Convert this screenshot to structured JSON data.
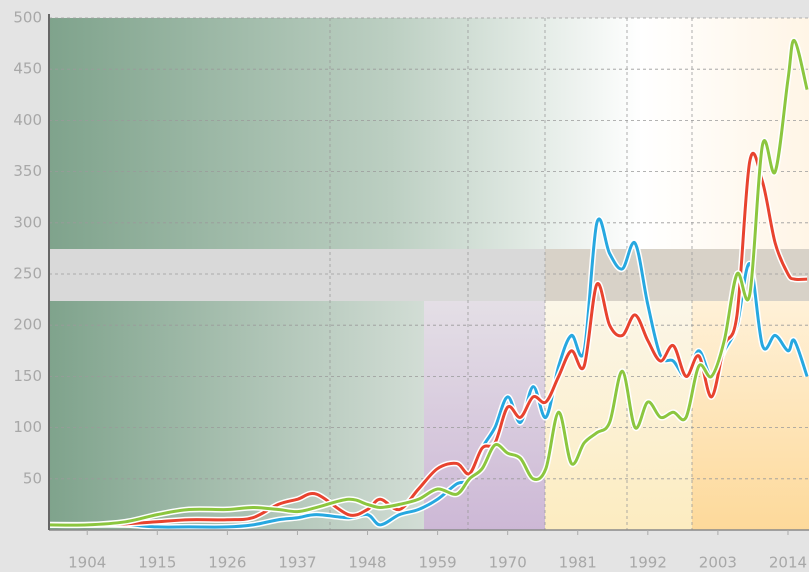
{
  "chart_data": {
    "type": "line",
    "x": [
      1898,
      1904,
      1910,
      1915,
      1920,
      1926,
      1930,
      1934,
      1937,
      1940,
      1945,
      1948,
      1950,
      1953,
      1956,
      1959,
      1962,
      1964,
      1966,
      1968,
      1970,
      1972,
      1974,
      1976,
      1978,
      1980,
      1982,
      1984,
      1986,
      1988,
      1990,
      1992,
      1994,
      1996,
      1998,
      2000,
      2002,
      2004,
      2006,
      2008,
      2010,
      2012,
      2014,
      2015,
      2017
    ],
    "series": [
      {
        "color": "#27a8e0",
        "values": [
          5,
          5,
          5,
          3,
          3,
          3,
          5,
          10,
          12,
          15,
          12,
          15,
          5,
          15,
          20,
          30,
          45,
          50,
          80,
          100,
          130,
          105,
          140,
          110,
          160,
          190,
          175,
          300,
          270,
          255,
          280,
          220,
          170,
          165,
          150,
          175,
          150,
          175,
          200,
          260,
          180,
          190,
          175,
          185,
          150
        ]
      },
      {
        "color": "#e8432f",
        "values": [
          5,
          5,
          6,
          8,
          10,
          10,
          12,
          25,
          30,
          35,
          15,
          20,
          30,
          20,
          40,
          60,
          65,
          55,
          80,
          85,
          120,
          110,
          130,
          125,
          150,
          175,
          160,
          240,
          200,
          190,
          210,
          185,
          165,
          180,
          150,
          170,
          130,
          180,
          210,
          360,
          340,
          280,
          250,
          245,
          245
        ]
      },
      {
        "color": "#8cc63f",
        "values": [
          5,
          5,
          8,
          15,
          20,
          20,
          22,
          20,
          18,
          22,
          30,
          25,
          22,
          25,
          30,
          40,
          35,
          50,
          60,
          83,
          75,
          70,
          50,
          60,
          115,
          65,
          85,
          95,
          105,
          155,
          100,
          125,
          110,
          115,
          110,
          160,
          150,
          185,
          250,
          230,
          376,
          350,
          440,
          478,
          430
        ]
      }
    ],
    "xlim": [
      1898,
      2017.3
    ],
    "ylim": [
      0,
      500
    ],
    "xticks": [
      1904,
      1915,
      1926,
      1937,
      1948,
      1959,
      1970,
      1981,
      1992,
      2003,
      2014
    ],
    "yticks": [
      50,
      100,
      150,
      200,
      250,
      300,
      350,
      400,
      450,
      500
    ],
    "grid": true
  }
}
